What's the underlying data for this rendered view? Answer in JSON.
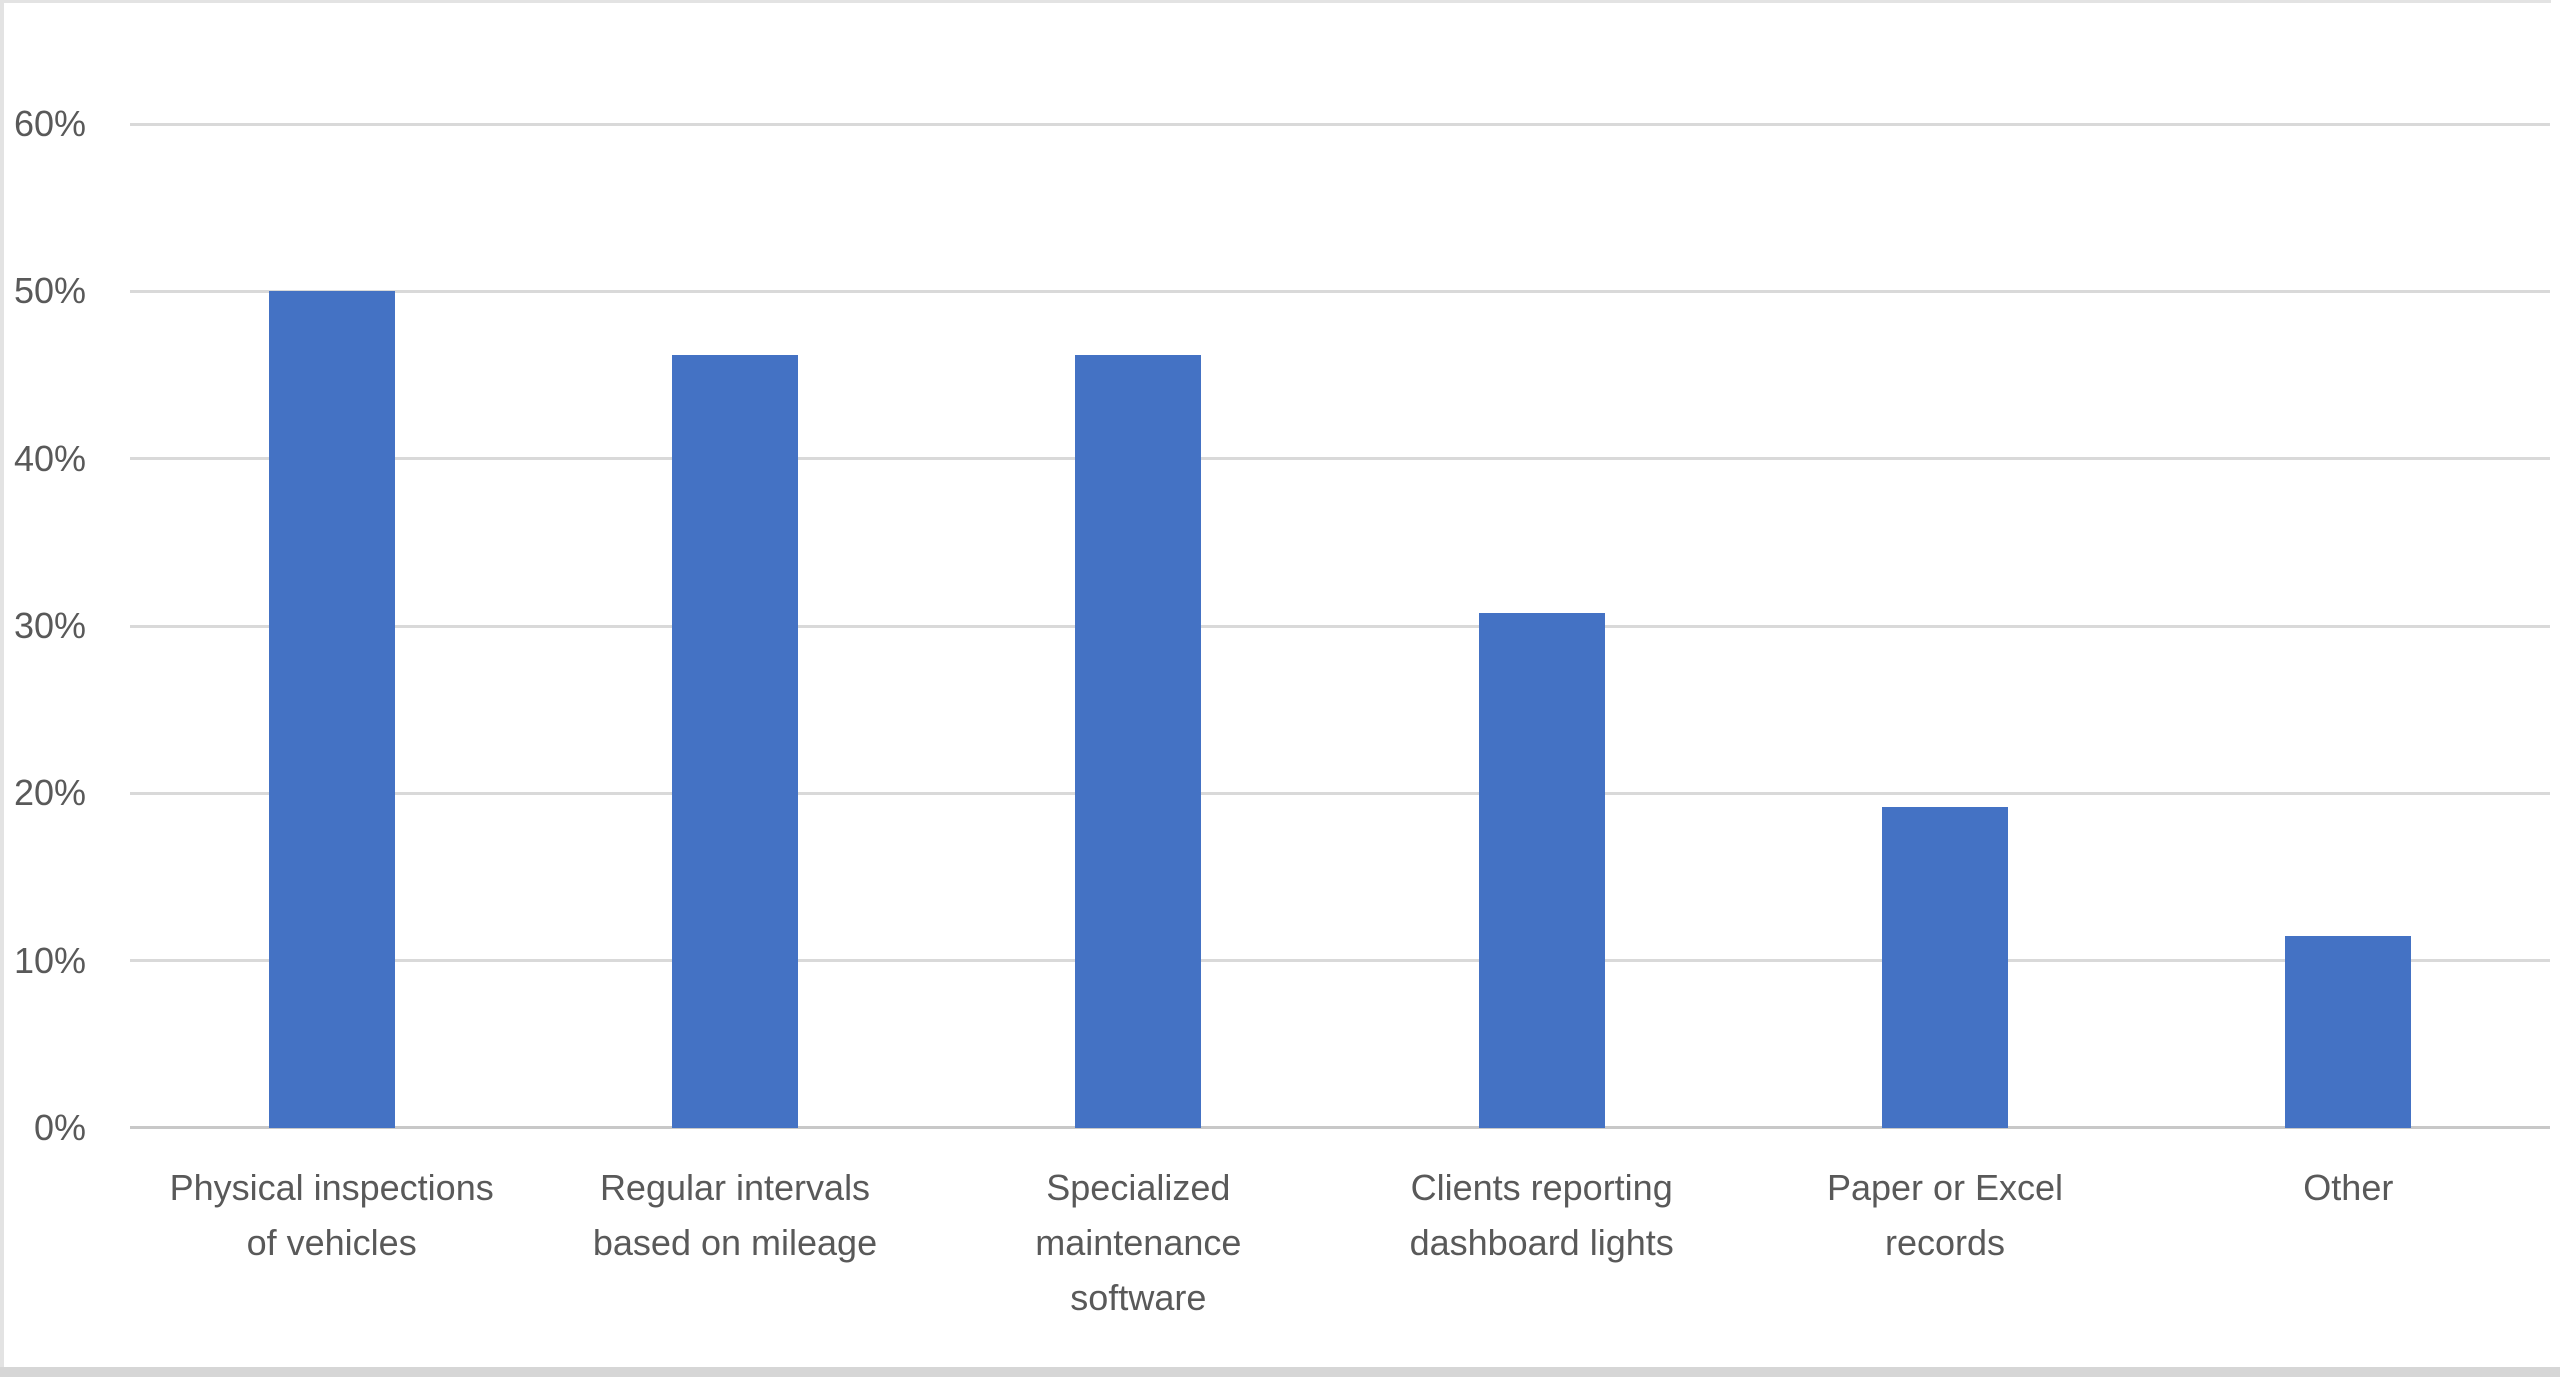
{
  "chart_data": {
    "type": "bar",
    "title": "",
    "xlabel": "",
    "ylabel": "",
    "categories": [
      "Physical inspections of vehicles",
      "Regular intervals based on mileage",
      "Specialized maintenance software",
      "Clients reporting dashboard lights",
      "Paper or Excel records",
      "Other"
    ],
    "category_wrap": [
      [
        "Physical inspections",
        "of vehicles"
      ],
      [
        "Regular intervals",
        "based on mileage"
      ],
      [
        "Specialized",
        "maintenance",
        "software"
      ],
      [
        "Clients reporting",
        "dashboard lights"
      ],
      [
        "Paper or Excel",
        "records"
      ],
      [
        "Other"
      ]
    ],
    "values": [
      50,
      46.2,
      46.2,
      30.8,
      19.2,
      11.5
    ],
    "value_unit": "%",
    "yticks": [
      "0%",
      "10%",
      "20%",
      "30%",
      "40%",
      "50%",
      "60%"
    ],
    "ylim": [
      0,
      60
    ],
    "grid": true,
    "legend": false
  },
  "colors": {
    "bar": "#4472C4",
    "gridline": "#D9D9D9",
    "axis_line": "#C8C8C8",
    "tick_label": "#595959",
    "category_label": "#595959",
    "frame_border": "#E3E3E3",
    "bottom_band": "#D6D6D6"
  }
}
